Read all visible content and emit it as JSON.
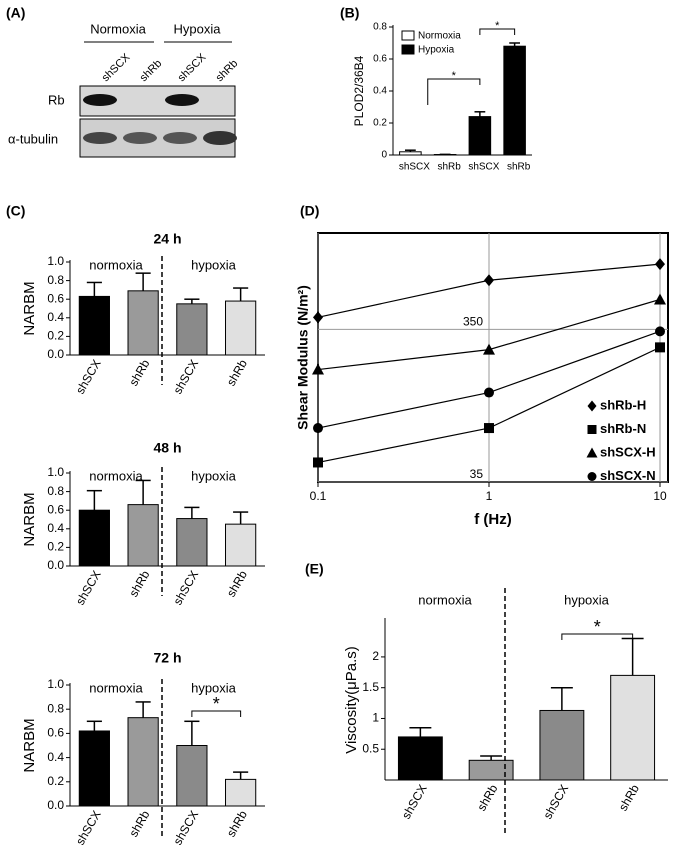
{
  "panel_labels": [
    "(A)",
    "(B)",
    "(C)",
    "(D)",
    "(E)"
  ],
  "blot": {
    "conditions": [
      "Normoxia",
      "Hypoxia"
    ],
    "lanes": [
      "shSCX",
      "shRb",
      "shSCX",
      "shRb"
    ],
    "rows": [
      "Rb",
      "α-tubulin"
    ]
  },
  "chart_data": [
    {
      "type": "bar",
      "ylabel": "PLOD2/36B4",
      "categories": [
        "shSCX",
        "shRb",
        "shSCX",
        "shRb"
      ],
      "series": [
        {
          "name": "Normoxia",
          "color": "#ffffff",
          "values": [
            0.02,
            0.003,
            null,
            null
          ],
          "errors": [
            0.01,
            0.001,
            null,
            null
          ]
        },
        {
          "name": "Hypoxia",
          "color": "#000000",
          "values": [
            null,
            null,
            0.24,
            0.68
          ],
          "errors": [
            null,
            null,
            0.03,
            0.02
          ]
        }
      ],
      "ylim": [
        0,
        0.8
      ],
      "yticks": [
        0,
        0.2,
        0.4,
        0.6,
        0.8
      ],
      "annotations": [
        "*",
        "*"
      ],
      "legend": "upper left"
    },
    {
      "type": "bar",
      "title": "24 h",
      "ylabel": "NARBM",
      "groups": [
        "normoxia",
        "hypoxia"
      ],
      "categories": [
        "shSCX",
        "shRb",
        "shSCX",
        "shRb"
      ],
      "values": [
        0.63,
        0.69,
        0.55,
        0.58
      ],
      "errors": [
        0.15,
        0.19,
        0.05,
        0.14
      ],
      "colors": [
        "#000000",
        "#9a9a9a",
        "#8a8a8a",
        "#e0e0e0"
      ],
      "ylim": [
        0,
        1
      ],
      "yticks": [
        {
          "value": 0,
          "label": "0.0"
        },
        0.2,
        0.4,
        0.6,
        0.8,
        {
          "value": 1,
          "label": "1.0"
        }
      ]
    },
    {
      "type": "bar",
      "title": "48 h",
      "ylabel": "NARBM",
      "groups": [
        "normoxia",
        "hypoxia"
      ],
      "categories": [
        "shSCX",
        "shRb",
        "shSCX",
        "shRb"
      ],
      "values": [
        0.6,
        0.66,
        0.51,
        0.45
      ],
      "errors": [
        0.21,
        0.26,
        0.12,
        0.13
      ],
      "colors": [
        "#000000",
        "#9a9a9a",
        "#8a8a8a",
        "#e0e0e0"
      ],
      "ylim": [
        0,
        1
      ],
      "yticks": [
        {
          "value": 0,
          "label": "0.0"
        },
        0.2,
        0.4,
        0.6,
        0.8,
        {
          "value": 1,
          "label": "1.0"
        }
      ]
    },
    {
      "type": "bar",
      "title": "72 h",
      "ylabel": "NARBM",
      "groups": [
        "normoxia",
        "hypoxia"
      ],
      "categories": [
        "shSCX",
        "shRb",
        "shSCX",
        "shRb"
      ],
      "values": [
        0.62,
        0.73,
        0.5,
        0.22
      ],
      "errors": [
        0.08,
        0.13,
        0.2,
        0.06
      ],
      "colors": [
        "#000000",
        "#9a9a9a",
        "#8a8a8a",
        "#e0e0e0"
      ],
      "ylim": [
        0,
        1
      ],
      "yticks": [
        {
          "value": 0,
          "label": "0.0"
        },
        0.2,
        0.4,
        0.6,
        0.8,
        {
          "value": 1,
          "label": "1.0"
        }
      ],
      "annotations": [
        "*"
      ]
    },
    {
      "type": "scatter",
      "xlabel": "f (Hz)",
      "ylabel": "Shear Modulus (N/m²)",
      "log_x": true,
      "log_y": true,
      "x": [
        0.1,
        1,
        10
      ],
      "series": [
        {
          "name": "shRb-H",
          "marker": "diamond",
          "color": "#000000",
          "values": [
            420,
            735,
            938
          ]
        },
        {
          "name": "shRb-N",
          "marker": "square",
          "color": "#000000",
          "values": [
            47,
            79,
            267
          ]
        },
        {
          "name": "shSCX-H",
          "marker": "triangle",
          "color": "#000000",
          "values": [
            191,
            258,
            550
          ]
        },
        {
          "name": "shSCX-N",
          "marker": "circle",
          "color": "#000000",
          "values": [
            79,
            135,
            340
          ]
        }
      ],
      "xlim": [
        0.1,
        10
      ],
      "xticks": [
        0.1,
        1,
        10
      ],
      "ylim": [
        35,
        1500
      ],
      "yticks": [
        35,
        350
      ],
      "grid": true,
      "legend": "lower right"
    },
    {
      "type": "bar",
      "ylabel": "Viscosity(μPa.s)",
      "groups": [
        "normoxia",
        "hypoxia"
      ],
      "categories": [
        "shSCX",
        "shRb",
        "shSCX",
        "shRb"
      ],
      "values": [
        0.7,
        0.32,
        1.13,
        1.7
      ],
      "errors": [
        0.15,
        0.07,
        0.37,
        0.6
      ],
      "colors": [
        "#000000",
        "#9a9a9a",
        "#8a8a8a",
        "#e0e0e0"
      ],
      "ylim": [
        0,
        2.6
      ],
      "yticks": [
        0.5,
        1,
        1.5,
        2
      ],
      "annotations": [
        "*"
      ]
    }
  ]
}
